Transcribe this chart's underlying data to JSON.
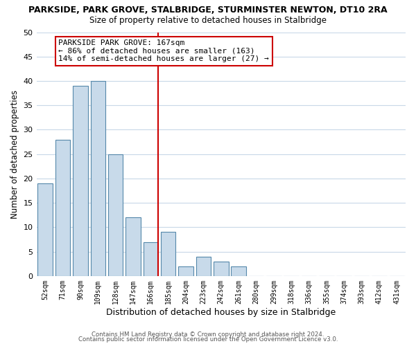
{
  "title": "PARKSIDE, PARK GROVE, STALBRIDGE, STURMINSTER NEWTON, DT10 2RA",
  "subtitle": "Size of property relative to detached houses in Stalbridge",
  "xlabel": "Distribution of detached houses by size in Stalbridge",
  "ylabel": "Number of detached properties",
  "categories": [
    "52sqm",
    "71sqm",
    "90sqm",
    "109sqm",
    "128sqm",
    "147sqm",
    "166sqm",
    "185sqm",
    "204sqm",
    "223sqm",
    "242sqm",
    "261sqm",
    "280sqm",
    "299sqm",
    "318sqm",
    "336sqm",
    "355sqm",
    "374sqm",
    "393sqm",
    "412sqm",
    "431sqm"
  ],
  "values": [
    19,
    28,
    39,
    40,
    25,
    12,
    7,
    9,
    2,
    4,
    3,
    2,
    0,
    0,
    0,
    0,
    0,
    0,
    0,
    0,
    0
  ],
  "bar_color": "#c8daea",
  "bar_edge_color": "#5588aa",
  "vline_x_index": 6,
  "vline_color": "#cc0000",
  "annotation_text": "PARKSIDE PARK GROVE: 167sqm\n← 86% of detached houses are smaller (163)\n14% of semi-detached houses are larger (27) →",
  "annotation_box_color": "#ffffff",
  "annotation_box_edge_color": "#cc0000",
  "ylim": [
    0,
    50
  ],
  "yticks": [
    0,
    5,
    10,
    15,
    20,
    25,
    30,
    35,
    40,
    45,
    50
  ],
  "footer_line1": "Contains HM Land Registry data © Crown copyright and database right 2024.",
  "footer_line2": "Contains public sector information licensed under the Open Government Licence v3.0.",
  "bg_color": "#ffffff",
  "grid_color": "#c8d8e8"
}
